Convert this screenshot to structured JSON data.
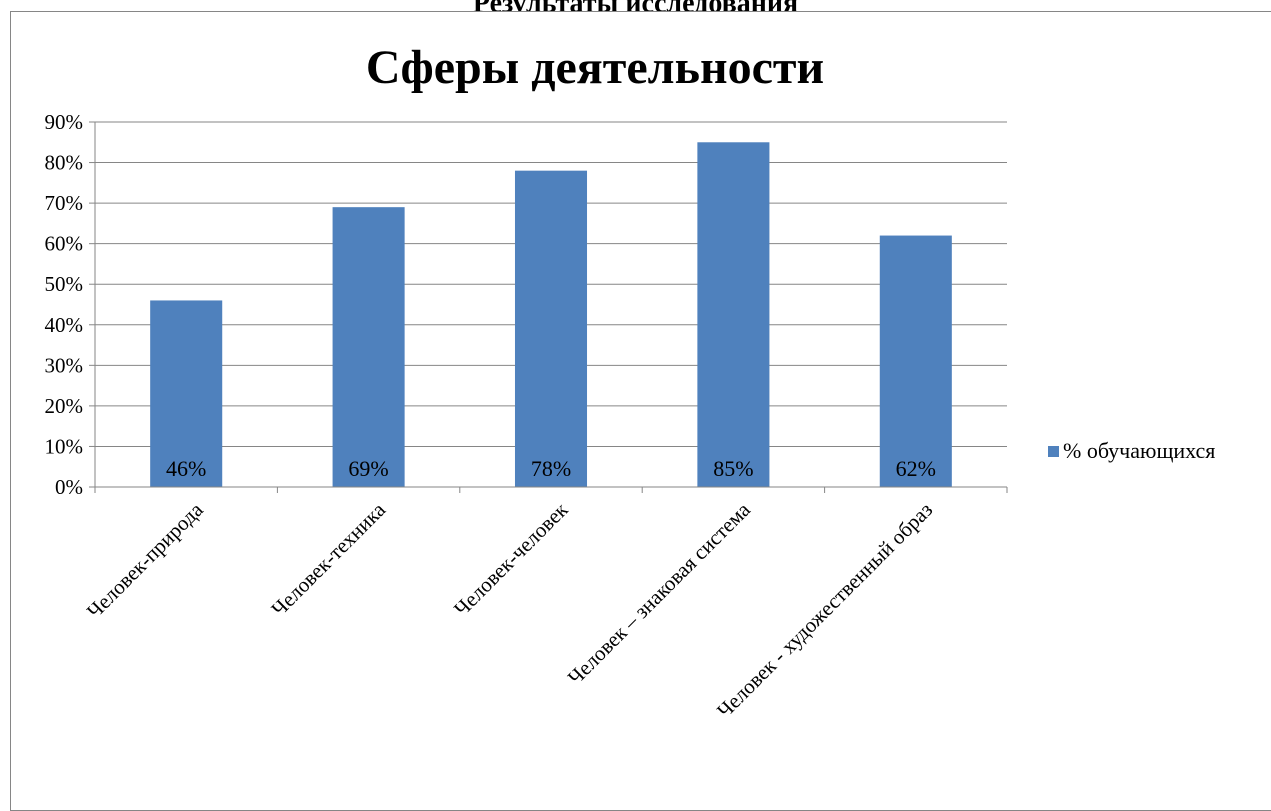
{
  "page": {
    "heading": "Результаты исследования"
  },
  "chart_data": {
    "type": "bar",
    "title": "Сферы деятельности",
    "categories": [
      "Человек-природа",
      "Человек-техника",
      "Человек-человек",
      "Человек – знаковая система",
      "Человек - художественный образ"
    ],
    "series": [
      {
        "name": "% обучающихся",
        "values": [
          46,
          69,
          78,
          85,
          62
        ],
        "labels": [
          "46%",
          "69%",
          "78%",
          "85%",
          "62%"
        ]
      }
    ],
    "ylim": [
      0,
      90
    ],
    "yticks": [
      0,
      10,
      20,
      30,
      40,
      50,
      60,
      70,
      80,
      90
    ],
    "ytick_labels": [
      "0%",
      "10%",
      "20%",
      "30%",
      "40%",
      "50%",
      "60%",
      "70%",
      "80%",
      "90%"
    ],
    "grid": true,
    "legend": "right",
    "colors": {
      "bar": "#4F81BD",
      "grid": "#868686",
      "axis": "#868686"
    }
  }
}
